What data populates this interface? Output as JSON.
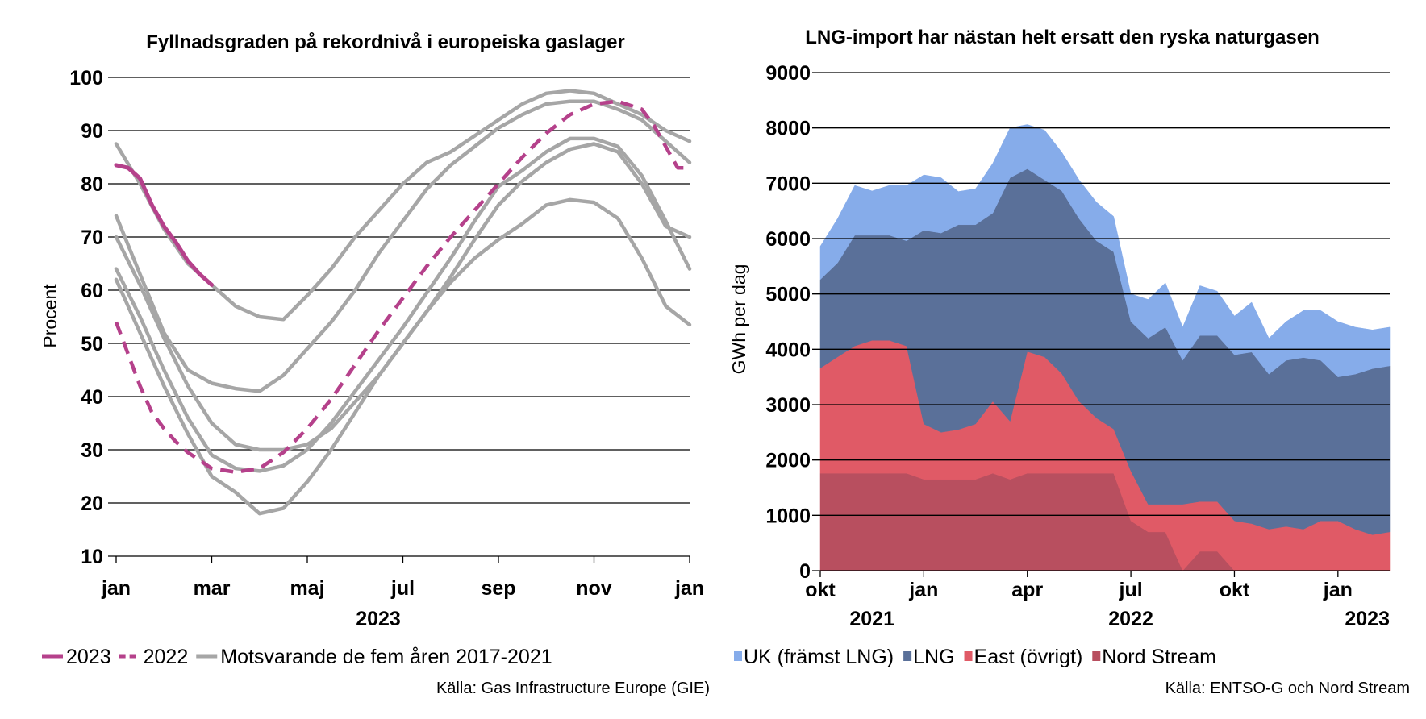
{
  "chart_data": [
    {
      "type": "line",
      "title": "Fyllnadsgraden på rekordnivå i europeiska gaslager",
      "ylabel": "Procent",
      "ylim": [
        10,
        100
      ],
      "yticks": [
        "10",
        "20",
        "30",
        "40",
        "50",
        "60",
        "70",
        "80",
        "90",
        "100"
      ],
      "xticks": [
        "jan",
        "mar",
        "maj",
        "jul",
        "sep",
        "nov",
        "jan"
      ],
      "xtick_months": [
        0,
        2,
        4,
        6,
        8,
        10,
        12
      ],
      "year_label": "2023",
      "grid": true,
      "colors": {
        "2023": "#b5418b",
        "2022": "#b5418b",
        "historic": "#a6a6a6"
      },
      "series": [
        {
          "name": "2023",
          "style": "solid",
          "x": [
            0,
            0.25,
            0.5,
            0.75,
            1.0,
            1.25,
            1.5,
            1.75,
            2.0
          ],
          "values": [
            83.5,
            83,
            81,
            76,
            72,
            69,
            65.5,
            63,
            61
          ]
        },
        {
          "name": "2022",
          "style": "dashed",
          "x": [
            0,
            0.25,
            0.5,
            0.75,
            1.0,
            1.25,
            1.5,
            1.75,
            2.0,
            2.5,
            3.0,
            3.5,
            4.0,
            4.5,
            5.0,
            5.5,
            6.0,
            6.5,
            7.0,
            7.5,
            8.0,
            8.5,
            9.0,
            9.5,
            10.0,
            10.5,
            11.0,
            11.25,
            11.5,
            11.75,
            12.0
          ],
          "values": [
            54,
            48,
            42,
            37,
            34,
            31.5,
            29.5,
            28,
            26.5,
            25.8,
            26.5,
            29.5,
            34,
            39.5,
            46,
            52.5,
            58.5,
            64.5,
            70,
            75,
            80,
            85,
            89.5,
            93,
            95,
            95.5,
            94,
            91,
            87,
            83,
            83
          ]
        },
        {
          "name": "Motsvarande de fem åren 2017-2021",
          "style": "solid",
          "x": [
            0,
            0.5,
            1.0,
            1.5,
            2.0,
            2.5,
            3.0,
            3.5,
            4.0,
            4.5,
            5.0,
            5.5,
            6.0,
            6.5,
            7.0,
            7.5,
            8.0,
            8.5,
            9.0,
            9.5,
            10.0,
            10.5,
            11.0,
            11.5,
            12.0
          ],
          "values": [
            87.5,
            80,
            71.5,
            65,
            61,
            57,
            55,
            54.5,
            59,
            64,
            70,
            75,
            80,
            84,
            86,
            89,
            92,
            95,
            97,
            97.5,
            97,
            95,
            93,
            90,
            88
          ]
        },
        {
          "name": "Motsvarande de fem åren 2017-2021",
          "style": "solid",
          "x": [
            0,
            0.5,
            1.0,
            1.5,
            2.0,
            2.5,
            3.0,
            3.5,
            4.0,
            4.5,
            5.0,
            5.5,
            6.0,
            6.5,
            7.0,
            7.5,
            8.0,
            8.5,
            9.0,
            9.5,
            10.0,
            10.5,
            11.0,
            11.5,
            12.0
          ],
          "values": [
            74,
            63,
            52,
            45,
            42.5,
            41.5,
            41,
            44,
            49,
            54,
            60,
            67,
            73,
            79,
            83.5,
            87,
            90.5,
            93,
            95,
            95.5,
            95.5,
            94,
            92,
            88,
            84
          ]
        },
        {
          "name": "Motsvarande de fem åren 2017-2021",
          "style": "solid",
          "x": [
            0,
            0.5,
            1.0,
            1.5,
            2.0,
            2.5,
            3.0,
            3.5,
            4.0,
            4.5,
            5.0,
            5.5,
            6.0,
            6.5,
            7.0,
            7.5,
            8.0,
            8.5,
            9.0,
            9.5,
            10.0,
            10.5,
            11.0,
            11.5,
            12.0
          ],
          "values": [
            70,
            61,
            51,
            42,
            35,
            31,
            30,
            30,
            31,
            34,
            39,
            44,
            50,
            56,
            62.5,
            69.5,
            76,
            80.5,
            84,
            86.5,
            87.5,
            86,
            80,
            72,
            70
          ]
        },
        {
          "name": "Motsvarande de fem åren 2017-2021",
          "style": "solid",
          "x": [
            0,
            0.5,
            1.0,
            1.5,
            2.0,
            2.5,
            3.0,
            3.5,
            4.0,
            4.5,
            5.0,
            5.5,
            6.0,
            6.5,
            7.0,
            7.5,
            8.0,
            8.5,
            9.0,
            9.5,
            10.0,
            10.5,
            11.0,
            11.5,
            12.0
          ],
          "values": [
            64,
            55,
            45,
            36,
            29,
            26.5,
            26,
            27,
            30,
            35,
            41,
            47,
            53,
            59.5,
            66,
            73,
            79.5,
            82.5,
            86,
            88.5,
            88.5,
            87,
            81.5,
            73,
            64
          ]
        },
        {
          "name": "Motsvarande de fem åren 2017-2021",
          "style": "solid",
          "x": [
            0,
            0.5,
            1.0,
            1.5,
            2.0,
            2.5,
            3.0,
            3.5,
            4.0,
            4.5,
            5.0,
            5.5,
            6.0,
            6.5,
            7.0,
            7.5,
            8.0,
            8.5,
            9.0,
            9.5,
            10.0,
            10.5,
            11.0,
            11.5,
            12.0
          ],
          "values": [
            62,
            52,
            42,
            33,
            25,
            22,
            18,
            19,
            24,
            30,
            37,
            44,
            50,
            56,
            61.5,
            66,
            69.5,
            72.5,
            76,
            77,
            76.5,
            73.5,
            66,
            57,
            53.5
          ]
        }
      ],
      "legend": [
        {
          "label": "2023",
          "style": "solid",
          "color": "#b5418b"
        },
        {
          "label": "2022",
          "style": "dashed",
          "color": "#b5418b"
        },
        {
          "label": "Motsvarande de fem åren 2017-2021",
          "style": "solid",
          "color": "#a6a6a6"
        }
      ],
      "legend_position": "bottom",
      "source": "Källa: Gas Infrastructure Europe (GIE)"
    },
    {
      "type": "area",
      "stacked": true,
      "title": "LNG-import har nästan helt ersatt den ryska naturgasen",
      "ylabel": "GWh per dag",
      "ylim": [
        0,
        9000
      ],
      "yticks": [
        "0",
        "1000",
        "2000",
        "3000",
        "4000",
        "5000",
        "6000",
        "7000",
        "8000",
        "9000"
      ],
      "xticks": [
        "okt",
        "jan",
        "apr",
        "jul",
        "okt",
        "jan"
      ],
      "xtick_months": [
        0,
        3,
        6,
        9,
        12,
        15
      ],
      "year_labels": [
        {
          "label": "2021",
          "month": 1.5
        },
        {
          "label": "2022",
          "month": 9
        },
        {
          "label": "2023",
          "month": 16.5
        }
      ],
      "grid": true,
      "x_months": [
        0,
        0.5,
        1.0,
        1.5,
        2.0,
        2.5,
        3.0,
        3.5,
        4.0,
        4.5,
        5.0,
        5.5,
        6.0,
        6.5,
        7.0,
        7.5,
        8.0,
        8.5,
        9.0,
        9.5,
        10.0,
        10.5,
        11.0,
        11.5,
        12.0,
        12.5,
        13.0,
        13.5,
        14.0,
        14.5,
        15.0,
        15.5,
        16.0,
        16.5
      ],
      "series": [
        {
          "name": "Nord Stream",
          "color": "#b84f5f",
          "values": [
            1760,
            1760,
            1760,
            1760,
            1760,
            1760,
            1650,
            1650,
            1650,
            1650,
            1760,
            1650,
            1760,
            1760,
            1760,
            1760,
            1760,
            1760,
            900,
            700,
            700,
            0,
            350,
            350,
            0,
            0,
            0,
            0,
            0,
            0,
            0,
            0,
            0,
            0
          ]
        },
        {
          "name": "East (övrigt)",
          "color": "#e05a66",
          "values": [
            1900,
            2100,
            2300,
            2400,
            2400,
            2300,
            1000,
            850,
            900,
            1000,
            1300,
            1050,
            2200,
            2100,
            1800,
            1300,
            1000,
            800,
            900,
            500,
            500,
            1200,
            900,
            900,
            900,
            850,
            750,
            800,
            750,
            900,
            900,
            750,
            650,
            700
          ]
        },
        {
          "name": "LNG",
          "color": "#5a7099",
          "values": [
            1600,
            1700,
            2000,
            1900,
            1900,
            1900,
            3500,
            3600,
            3700,
            3600,
            3400,
            4400,
            3300,
            3200,
            3300,
            3300,
            3200,
            3200,
            2700,
            3000,
            3200,
            2600,
            3000,
            3000,
            3000,
            3100,
            2800,
            3000,
            3100,
            2900,
            2600,
            2800,
            3000,
            3000
          ]
        },
        {
          "name": "UK (främst LNG)",
          "color": "#86acea",
          "values": [
            600,
            800,
            900,
            800,
            900,
            1000,
            1000,
            1000,
            600,
            650,
            900,
            900,
            800,
            900,
            700,
            700,
            700,
            640,
            500,
            700,
            800,
            600,
            900,
            800,
            700,
            900,
            650,
            700,
            850,
            900,
            1000,
            850,
            700,
            700
          ]
        }
      ],
      "legend": [
        {
          "label": "UK (främst LNG)",
          "color": "#86acea"
        },
        {
          "label": "LNG",
          "color": "#5a7099"
        },
        {
          "label": "East (övrigt)",
          "color": "#e05a66"
        },
        {
          "label": "Nord Stream",
          "color": "#b84f5f"
        }
      ],
      "legend_position": "bottom",
      "source": "Källa: ENTSO-G och Nord Stream"
    }
  ]
}
